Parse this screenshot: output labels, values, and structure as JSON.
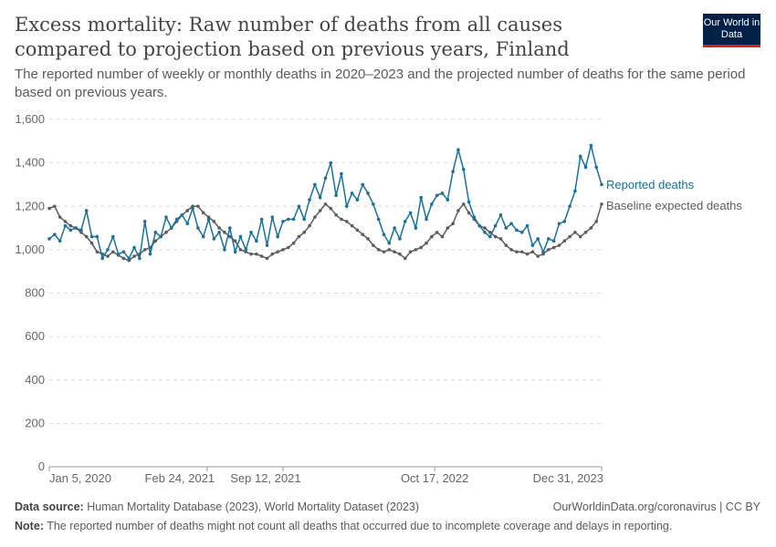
{
  "header": {
    "title": "Excess mortality: Raw number of deaths from all causes compared to projection based on previous years, Finland",
    "subtitle": "The reported number of weekly or monthly deaths in 2020–2023 and the projected number of deaths for the same period based on previous years.",
    "logo": "Our World in Data"
  },
  "chart_data": {
    "type": "line",
    "ylim": [
      0,
      1600
    ],
    "yticks": [
      0,
      200,
      400,
      600,
      800,
      1000,
      1200,
      1400,
      1600
    ],
    "ytick_labels": [
      "0",
      "200",
      "400",
      "600",
      "800",
      "1,000",
      "1,200",
      "1,400",
      "1,600"
    ],
    "xticks": [
      {
        "date": "2020-01-05",
        "label": "Jan 5, 2020"
      },
      {
        "date": "2021-02-24",
        "label": "Feb 24, 2021"
      },
      {
        "date": "2021-09-12",
        "label": "Sep 12, 2021"
      },
      {
        "date": "2022-10-17",
        "label": "Oct 17, 2022"
      },
      {
        "date": "2023-12-31",
        "label": "Dec 31, 2023"
      }
    ],
    "grid": "horizontal dashed",
    "x": [
      "2020-01-05",
      "2020-01-19",
      "2020-02-02",
      "2020-02-16",
      "2020-03-01",
      "2020-03-15",
      "2020-03-29",
      "2020-04-12",
      "2020-04-26",
      "2020-05-10",
      "2020-05-24",
      "2020-06-07",
      "2020-06-21",
      "2020-07-05",
      "2020-07-19",
      "2020-08-02",
      "2020-08-16",
      "2020-08-30",
      "2020-09-13",
      "2020-09-27",
      "2020-10-11",
      "2020-10-25",
      "2020-11-08",
      "2020-11-22",
      "2020-12-06",
      "2020-12-20",
      "2021-01-03",
      "2021-01-17",
      "2021-01-31",
      "2021-02-14",
      "2021-02-28",
      "2021-03-14",
      "2021-03-28",
      "2021-04-11",
      "2021-04-25",
      "2021-05-09",
      "2021-05-23",
      "2021-06-06",
      "2021-06-20",
      "2021-07-04",
      "2021-07-18",
      "2021-08-01",
      "2021-08-15",
      "2021-08-29",
      "2021-09-12",
      "2021-09-26",
      "2021-10-10",
      "2021-10-24",
      "2021-11-07",
      "2021-11-21",
      "2021-12-05",
      "2021-12-19",
      "2022-01-02",
      "2022-01-16",
      "2022-01-30",
      "2022-02-13",
      "2022-02-27",
      "2022-03-13",
      "2022-03-27",
      "2022-04-10",
      "2022-04-24",
      "2022-05-08",
      "2022-05-22",
      "2022-06-05",
      "2022-06-19",
      "2022-07-03",
      "2022-07-17",
      "2022-07-31",
      "2022-08-14",
      "2022-08-28",
      "2022-09-11",
      "2022-09-25",
      "2022-10-09",
      "2022-10-23",
      "2022-11-06",
      "2022-11-20",
      "2022-12-04",
      "2022-12-18",
      "2023-01-01",
      "2023-01-15",
      "2023-01-29",
      "2023-02-12",
      "2023-02-26",
      "2023-03-12",
      "2023-03-26",
      "2023-04-09",
      "2023-04-23",
      "2023-05-07",
      "2023-05-21",
      "2023-06-04",
      "2023-06-18",
      "2023-07-02",
      "2023-07-16",
      "2023-07-30",
      "2023-08-13",
      "2023-08-27",
      "2023-09-10",
      "2023-09-24",
      "2023-10-08",
      "2023-10-22",
      "2023-11-05",
      "2023-11-19",
      "2023-12-03",
      "2023-12-17",
      "2023-12-31"
    ],
    "series": [
      {
        "name": "Reported deaths",
        "color": "#18719f",
        "values": [
          1050,
          1070,
          1040,
          1110,
          1090,
          1100,
          1090,
          1180,
          1060,
          1060,
          960,
          1000,
          1060,
          980,
          990,
          960,
          1010,
          960,
          1130,
          980,
          1080,
          1060,
          1150,
          1100,
          1140,
          1160,
          1120,
          1190,
          1100,
          1060,
          1140,
          1050,
          1080,
          1000,
          1100,
          990,
          1060,
          1000,
          1080,
          1040,
          1140,
          1020,
          1150,
          1060,
          1130,
          1140,
          1140,
          1200,
          1140,
          1230,
          1300,
          1240,
          1330,
          1400,
          1250,
          1350,
          1200,
          1260,
          1230,
          1300,
          1260,
          1210,
          1140,
          1070,
          1030,
          1100,
          1050,
          1130,
          1170,
          1100,
          1240,
          1140,
          1210,
          1250,
          1260,
          1230,
          1360,
          1460,
          1370,
          1220,
          1150,
          1110,
          1080,
          1060,
          1110,
          1160,
          1100,
          1120,
          1090,
          1080,
          1110,
          1020,
          1050,
          990,
          1050,
          1040,
          1120,
          1130,
          1200,
          1270,
          1430,
          1380,
          1480,
          1380,
          1300
        ]
      },
      {
        "name": "Baseline expected deaths",
        "color": "#5d5d5d",
        "values": [
          1190,
          1200,
          1150,
          1130,
          1110,
          1100,
          1080,
          1060,
          1030,
          990,
          980,
          970,
          990,
          975,
          960,
          950,
          970,
          980,
          1000,
          1010,
          1040,
          1060,
          1080,
          1100,
          1130,
          1160,
          1180,
          1200,
          1200,
          1170,
          1150,
          1130,
          1100,
          1080,
          1060,
          1040,
          1000,
          990,
          980,
          980,
          970,
          960,
          980,
          990,
          1000,
          1010,
          1030,
          1060,
          1080,
          1110,
          1150,
          1180,
          1210,
          1190,
          1160,
          1140,
          1130,
          1110,
          1090,
          1070,
          1050,
          1020,
          1000,
          990,
          1000,
          990,
          980,
          960,
          990,
          1000,
          1010,
          1030,
          1060,
          1080,
          1060,
          1100,
          1120,
          1180,
          1210,
          1170,
          1140,
          1110,
          1100,
          1080,
          1060,
          1050,
          1020,
          1000,
          990,
          990,
          980,
          990,
          970,
          980,
          1000,
          1010,
          1020,
          1040,
          1060,
          1080,
          1060,
          1080,
          1100,
          1130,
          1210
        ]
      }
    ]
  },
  "footer": {
    "source_label": "Data source:",
    "source": "Human Mortality Database (2023), World Mortality Dataset (2023)",
    "url": "OurWorldinData.org/coronavirus | CC BY",
    "note_label": "Note:",
    "note": "The reported number of deaths might not count all deaths that occurred due to incomplete coverage and delays in reporting."
  }
}
